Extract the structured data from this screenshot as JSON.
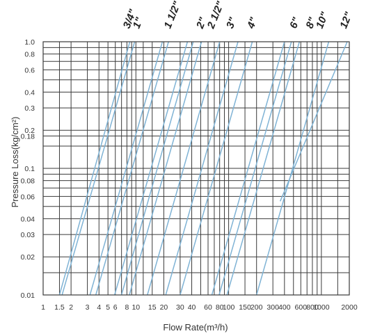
{
  "chart_data": {
    "type": "line",
    "title": "",
    "xlabel": "Flow Rate(m³/h)",
    "ylabel": "Pressure Loss(kg/cm²)",
    "x_scale": "log",
    "y_scale": "log",
    "xlim": [
      1,
      2000
    ],
    "ylim": [
      0.01,
      1.0
    ],
    "grid": true,
    "x_tick_labels": [
      {
        "v": 1,
        "t": "1"
      },
      {
        "v": 1.5,
        "t": "1.5"
      },
      {
        "v": 2,
        "t": "2"
      },
      {
        "v": 3,
        "t": "3"
      },
      {
        "v": 4,
        "t": "4"
      },
      {
        "v": 5,
        "t": "5"
      },
      {
        "v": 6,
        "t": "6"
      },
      {
        "v": 8,
        "t": "8"
      },
      {
        "v": 10,
        "t": "10"
      },
      {
        "v": 15,
        "t": "15"
      },
      {
        "v": 20,
        "t": "20"
      },
      {
        "v": 30,
        "t": "30"
      },
      {
        "v": 40,
        "t": "40"
      },
      {
        "v": 60,
        "t": "60"
      },
      {
        "v": 80,
        "t": "80"
      },
      {
        "v": 100,
        "t": "100"
      },
      {
        "v": 150,
        "t": "150"
      },
      {
        "v": 200,
        "t": "200"
      },
      {
        "v": 300,
        "t": "300"
      },
      {
        "v": 400,
        "t": "400"
      },
      {
        "v": 600,
        "t": "600"
      },
      {
        "v": 800,
        "t": "800"
      },
      {
        "v": 1000,
        "t": "1000"
      },
      {
        "v": 2000,
        "t": "2000"
      }
    ],
    "y_tick_labels": [
      {
        "v": 1.0,
        "t": "1.0"
      },
      {
        "v": 0.8,
        "t": "0.8"
      },
      {
        "v": 0.6,
        "t": "0.6"
      },
      {
        "v": 0.4,
        "t": "0.4"
      },
      {
        "v": 0.3,
        "t": "0.3"
      },
      {
        "v": 0.2,
        "t": "0.2"
      },
      {
        "v": 0.18,
        "t": "0.18"
      },
      {
        "v": 0.1,
        "t": "0.1"
      },
      {
        "v": 0.08,
        "t": "0.08"
      },
      {
        "v": 0.06,
        "t": "0.06"
      },
      {
        "v": 0.04,
        "t": "0.04"
      },
      {
        "v": 0.03,
        "t": "0.03"
      },
      {
        "v": 0.02,
        "t": "0.02"
      },
      {
        "v": 0.01,
        "t": "0.01"
      }
    ],
    "x_grid_values": [
      1,
      1.5,
      2,
      3,
      4,
      5,
      6,
      7,
      8,
      9,
      10,
      12,
      15,
      20,
      30,
      40,
      50,
      60,
      70,
      80,
      90,
      100,
      150,
      200,
      300,
      400,
      500,
      600,
      700,
      800,
      900,
      1000,
      1500,
      2000
    ],
    "y_grid_values": [
      1.0,
      0.9,
      0.8,
      0.7,
      0.6,
      0.5,
      0.4,
      0.3,
      0.2,
      0.18,
      0.15,
      0.1,
      0.09,
      0.08,
      0.07,
      0.06,
      0.05,
      0.04,
      0.03,
      0.02,
      0.015,
      0.01
    ],
    "series": [
      {
        "name": "3/4\"",
        "points": [
          [
            1.5,
            0.01
          ],
          [
            8.6,
            1.0
          ]
        ]
      },
      {
        "name": "1\"",
        "points": [
          [
            1.6,
            0.01
          ],
          [
            9.7,
            1.0
          ]
        ]
      },
      {
        "name": "1 1/2\"",
        "points": [
          [
            3.2,
            0.01
          ],
          [
            19.3,
            1.0
          ]
        ]
      },
      {
        "name": "",
        "points": [
          [
            3.7,
            0.01
          ],
          [
            22.5,
            1.0
          ]
        ]
      },
      {
        "name": "2\"",
        "points": [
          [
            5.9,
            0.01
          ],
          [
            36,
            1.0
          ]
        ]
      },
      {
        "name": "2 1/2\"",
        "points": [
          [
            7.0,
            0.01
          ],
          [
            41.5,
            1.0
          ]
        ]
      },
      {
        "name": "",
        "points": [
          [
            8.5,
            0.01
          ],
          [
            51,
            1.0
          ]
        ]
      },
      {
        "name": "3\"",
        "points": [
          [
            13.3,
            0.01
          ],
          [
            80,
            1.0
          ]
        ]
      },
      {
        "name": "4\"",
        "points": [
          [
            21,
            0.01
          ],
          [
            126,
            1.0
          ]
        ]
      },
      {
        "name": "",
        "points": [
          [
            30,
            0.01
          ],
          [
            180,
            1.0
          ]
        ]
      },
      {
        "name": "6\"",
        "points": [
          [
            66,
            0.01
          ],
          [
            400,
            1.0
          ]
        ]
      },
      {
        "name": "8\"",
        "points": [
          [
            79,
            0.01
          ],
          [
            475,
            1.0
          ]
        ]
      },
      {
        "name": "",
        "points": [
          [
            96,
            0.01
          ],
          [
            580,
            1.0
          ]
        ]
      },
      {
        "name": "10\"",
        "points": [
          [
            200,
            0.01
          ],
          [
            1200,
            1.0
          ]
        ]
      },
      {
        "name": "12\"",
        "points": [
          [
            360,
            0.055
          ],
          [
            1900,
            1.0
          ]
        ]
      }
    ],
    "size_labels": [
      {
        "text": "3/4\"",
        "at": 9.4
      },
      {
        "text": "1\"",
        "at": 12
      },
      {
        "text": "1 1/2\"",
        "at": 26
      },
      {
        "text": "2\"",
        "at": 58
      },
      {
        "text": "2 1/2\"",
        "at": 76
      },
      {
        "text": "3\"",
        "at": 122
      },
      {
        "text": "4\"",
        "at": 205
      },
      {
        "text": "6\"",
        "at": 590
      },
      {
        "text": "8\"",
        "at": 880
      },
      {
        "text": "10\"",
        "at": 1130
      },
      {
        "text": "12\"",
        "at": 2050
      }
    ],
    "colors": {
      "grid": "#3a3a3a",
      "series": "#7fb3d5",
      "text": "#333333"
    }
  }
}
